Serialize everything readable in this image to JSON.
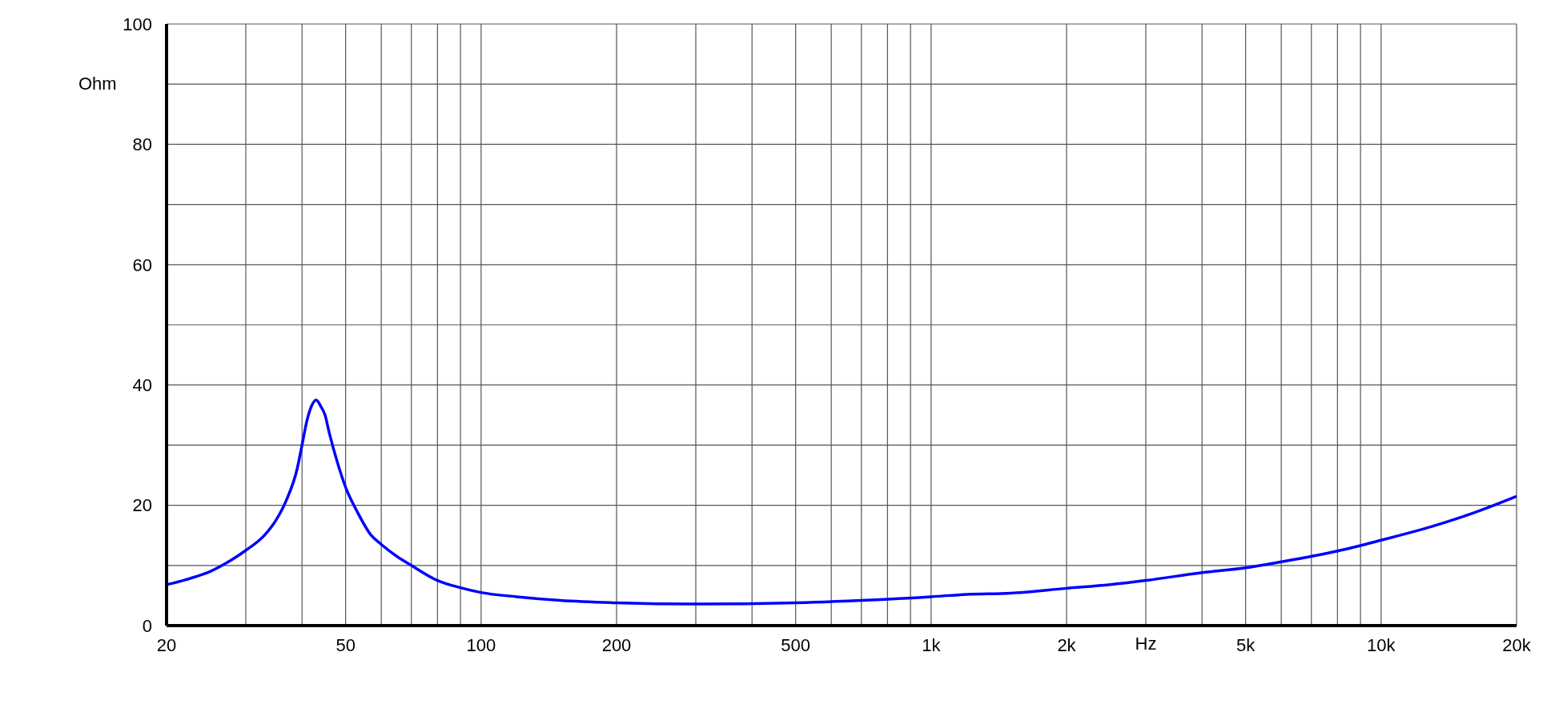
{
  "chart_data": {
    "type": "line",
    "xlabel": "Hz",
    "ylabel": "Ohm",
    "log": "x",
    "grid": true,
    "marker": "none",
    "line_style": "solid",
    "x": [
      20,
      22,
      25,
      28,
      30,
      33,
      35,
      37,
      39,
      40,
      41,
      42,
      43,
      44,
      45,
      46,
      48,
      50,
      53,
      57,
      60,
      65,
      70,
      80,
      90,
      100,
      120,
      150,
      200,
      300,
      500,
      700,
      1000,
      1200,
      1500,
      2000,
      2500,
      3000,
      4000,
      5000,
      6000,
      8000,
      10000,
      13000,
      16000,
      20000
    ],
    "series": [
      {
        "color": "#0000ff",
        "values": [
          6.8,
          7.6,
          9,
          11,
          12.5,
          15,
          17.5,
          21,
          26,
          30,
          34,
          36.5,
          37.5,
          36.5,
          35,
          32,
          27,
          23,
          19,
          15,
          13.5,
          11.5,
          10,
          7.5,
          6.3,
          5.5,
          4.8,
          4.2,
          3.8,
          3.6,
          3.8,
          4.2,
          4.8,
          5.2,
          5.4,
          6.2,
          6.8,
          7.5,
          8.8,
          9.6,
          10.6,
          12.4,
          14.2,
          16.5,
          18.7,
          21.5
        ]
      }
    ],
    "xlim": [
      20,
      20000
    ],
    "xticks": [
      20,
      {
        "value": 30,
        "label": null
      },
      {
        "value": 40,
        "label": null
      },
      50,
      {
        "value": 60,
        "label": null
      },
      {
        "value": 70,
        "label": null
      },
      {
        "value": 80,
        "label": null
      },
      {
        "value": 90,
        "label": null
      },
      100,
      200,
      {
        "value": 300,
        "label": null
      },
      {
        "value": 400,
        "label": null
      },
      500,
      {
        "value": 600,
        "label": null
      },
      {
        "value": 700,
        "label": null
      },
      {
        "value": 800,
        "label": null
      },
      {
        "value": 900,
        "label": null
      },
      {
        "value": 1000,
        "label": "1k"
      },
      {
        "value": 2000,
        "label": "2k"
      },
      {
        "value": 3000,
        "label": null
      },
      {
        "value": 4000,
        "label": null
      },
      {
        "value": 5000,
        "label": "5k"
      },
      {
        "value": 6000,
        "label": null
      },
      {
        "value": 7000,
        "label": null
      },
      {
        "value": 8000,
        "label": null
      },
      {
        "value": 9000,
        "label": null
      },
      {
        "value": 10000,
        "label": "10k"
      },
      {
        "value": 20000,
        "label": "20k"
      }
    ],
    "ylim": [
      0,
      100
    ],
    "yticks": [
      0,
      {
        "value": 10,
        "label": null
      },
      20,
      {
        "value": 30,
        "label": null
      },
      40,
      {
        "value": 50,
        "label": null
      },
      60,
      {
        "value": 70,
        "label": null
      },
      80,
      {
        "value": 90,
        "label": null
      },
      100
    ]
  }
}
